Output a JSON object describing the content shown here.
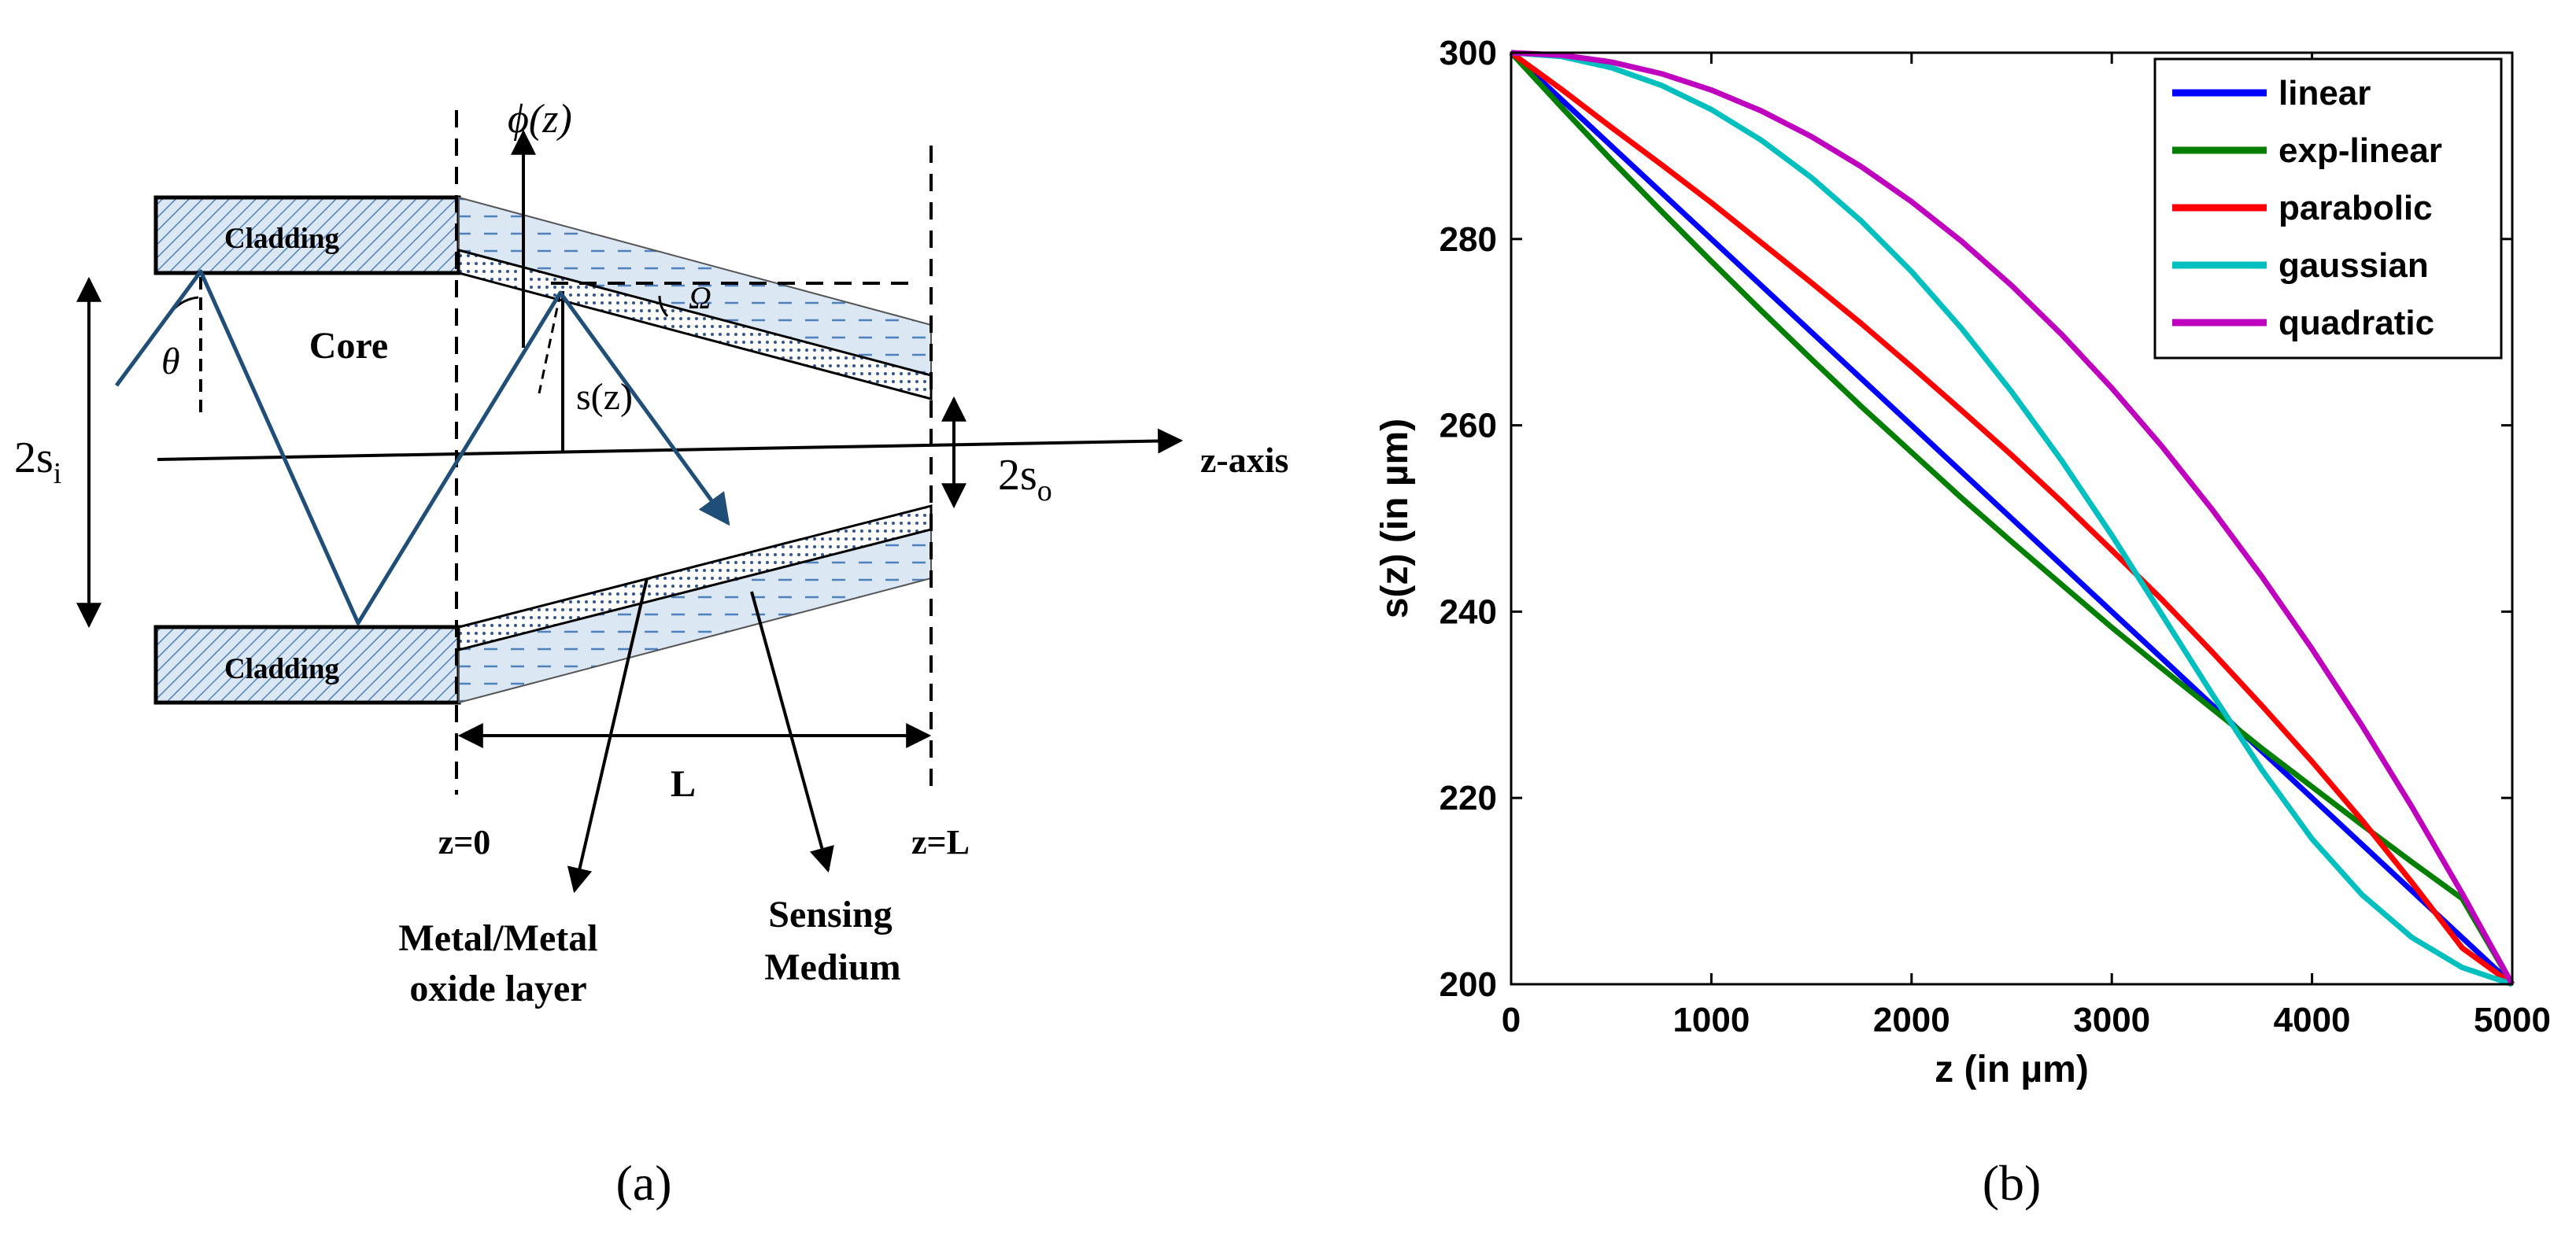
{
  "panel_a": {
    "caption": "(a)",
    "labels": {
      "cladding_top": "Cladding",
      "cladding_bottom": "Cladding",
      "core": "Core",
      "theta": "θ",
      "omega": "Ω",
      "phi_z": "ϕ(z)",
      "s_z": "s(z)",
      "two_si_main": "2s",
      "two_si_sub": "i",
      "two_so_main": "2s",
      "two_so_sub": "o",
      "z_axis": "z-axis",
      "L": "L",
      "z0": "z=0",
      "zL": "z=L",
      "metal_line1": "Metal/Metal",
      "metal_line2": "oxide layer",
      "sensing_line1": "Sensing",
      "sensing_line2": "Medium"
    },
    "colors": {
      "ray": "#1f4e79",
      "fill": "#dbe7f3",
      "hatch": "#4f81bd",
      "layer": "#2f5597"
    }
  },
  "panel_b": {
    "caption": "(b)",
    "chart_data": {
      "type": "line",
      "title": "",
      "xlabel": "z (in µm)",
      "ylabel": "s(z)   (in µm)",
      "xlim": [
        0,
        5000
      ],
      "ylim": [
        200,
        300
      ],
      "xticks": [
        0,
        1000,
        2000,
        3000,
        4000,
        5000
      ],
      "yticks": [
        200,
        220,
        240,
        260,
        280,
        300
      ],
      "grid": false,
      "legend_position": "top-right",
      "x": [
        0,
        250,
        500,
        750,
        1000,
        1250,
        1500,
        1750,
        2000,
        2250,
        2500,
        2750,
        3000,
        3250,
        3500,
        3750,
        4000,
        4250,
        4500,
        4750,
        5000
      ],
      "series": [
        {
          "name": "linear",
          "color": "#0000ff",
          "values": [
            300,
            295,
            290,
            285,
            280,
            275,
            270,
            265,
            260,
            255,
            250,
            245,
            240,
            235,
            230,
            225,
            220,
            215,
            210,
            205,
            200
          ]
        },
        {
          "name": "exp-linear",
          "color": "#007f00",
          "values": [
            300,
            294.2,
            288.5,
            283.0,
            277.6,
            272.3,
            267.1,
            262.0,
            257.1,
            252.2,
            247.5,
            242.9,
            238.3,
            233.9,
            229.6,
            225.3,
            221.2,
            217.1,
            213.1,
            209.2,
            200
          ]
        },
        {
          "name": "parabolic",
          "color": "#ff0000",
          "values": [
            300,
            296.1,
            292.0,
            288.0,
            283.9,
            279.6,
            275.3,
            270.9,
            266.3,
            261.6,
            256.8,
            251.8,
            246.6,
            241.3,
            235.7,
            229.9,
            223.9,
            217.6,
            210.9,
            203.9,
            200
          ]
        },
        {
          "name": "gaussian",
          "color": "#00bfbf",
          "values": [
            300,
            299.6,
            298.4,
            296.5,
            293.9,
            290.6,
            286.6,
            281.9,
            276.5,
            270.4,
            263.6,
            256.2,
            248.2,
            239.7,
            231.2,
            223.0,
            215.6,
            209.6,
            205.0,
            201.8,
            200
          ]
        },
        {
          "name": "quadratic",
          "color": "#bf00bf",
          "values": [
            300,
            299.75,
            299.0,
            297.75,
            296.0,
            293.75,
            291.0,
            287.75,
            284.0,
            279.75,
            275.0,
            269.75,
            264.0,
            257.75,
            251.0,
            243.75,
            236.0,
            227.75,
            219.0,
            209.75,
            200
          ]
        }
      ]
    }
  }
}
